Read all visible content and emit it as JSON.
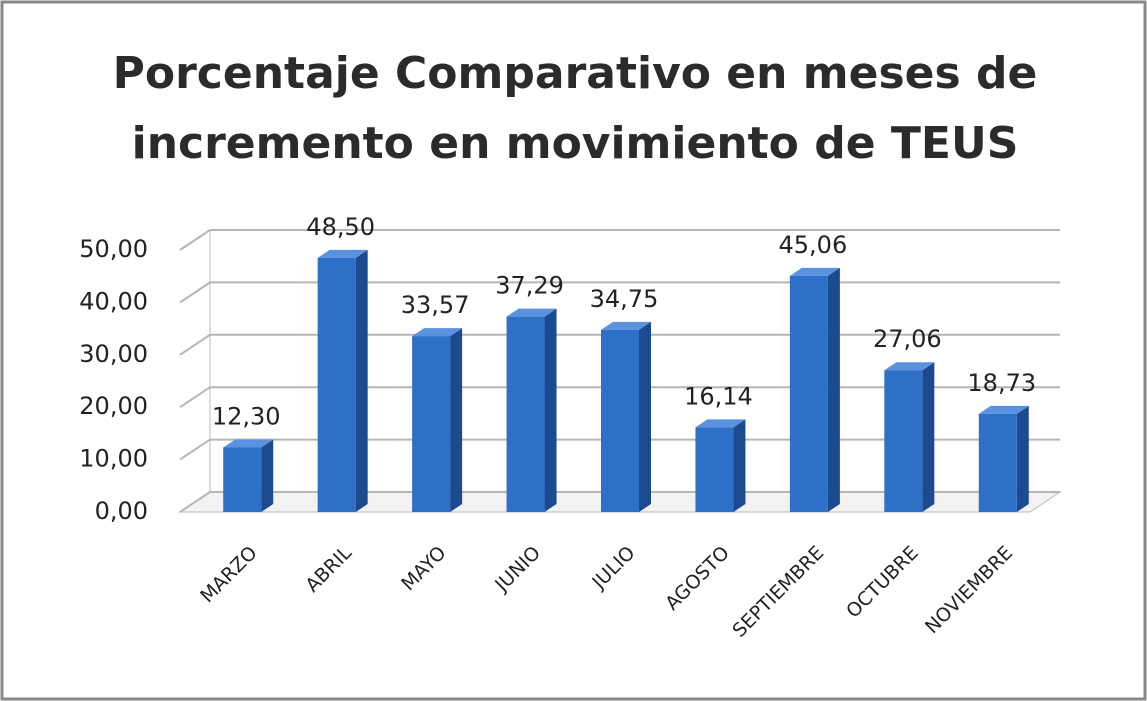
{
  "chart_data": {
    "type": "bar3d",
    "title": [
      "Porcentaje Comparativo en meses de",
      "incremento en movimiento de TEUS"
    ],
    "categories": [
      "MARZO",
      "ABRIL",
      "MAYO",
      "JUNIO",
      "JULIO",
      "AGOSTO",
      "SEPTIEMBRE",
      "OCTUBRE",
      "NOVIEMBRE"
    ],
    "values": [
      12.3,
      48.5,
      33.57,
      37.29,
      34.75,
      16.14,
      45.06,
      27.06,
      18.73
    ],
    "value_labels": [
      "12,30",
      "48,50",
      "33,57",
      "37,29",
      "34,75",
      "16,14",
      "45,06",
      "27,06",
      "18,73"
    ],
    "color": "#2e6fc7",
    "ylim": [
      0,
      50
    ],
    "yticks": [
      {
        "value": 0,
        "label": "0,00"
      },
      {
        "value": 10,
        "label": "10,00"
      },
      {
        "value": 20,
        "label": "20,00"
      },
      {
        "value": 30,
        "label": "30,00"
      },
      {
        "value": 40,
        "label": "40,00"
      },
      {
        "value": 50,
        "label": "50,00"
      }
    ],
    "grid": true
  }
}
